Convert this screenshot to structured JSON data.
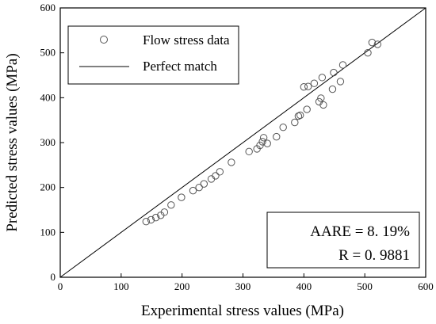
{
  "chart_data": {
    "type": "scatter",
    "title": "",
    "xlabel": "Experimental stress values (MPa)",
    "ylabel": "Predicted stress values (MPa)",
    "xlim": [
      0,
      600
    ],
    "ylim": [
      0,
      600
    ],
    "xticks": [
      "0",
      "100",
      "200",
      "300",
      "400",
      "500",
      "600"
    ],
    "yticks": [
      "0",
      "100",
      "200",
      "300",
      "400",
      "500",
      "600"
    ],
    "grid": false,
    "legend_position": "top-left",
    "series": [
      {
        "name": "Flow stress data",
        "marker": "open-circle",
        "points": [
          [
            141,
            124
          ],
          [
            149,
            128
          ],
          [
            157,
            133
          ],
          [
            165,
            138
          ],
          [
            171,
            145
          ],
          [
            182,
            161
          ],
          [
            199,
            178
          ],
          [
            218,
            193
          ],
          [
            228,
            200
          ],
          [
            236,
            208
          ],
          [
            248,
            219
          ],
          [
            255,
            226
          ],
          [
            262,
            235
          ],
          [
            281,
            256
          ],
          [
            310,
            280
          ],
          [
            323,
            286
          ],
          [
            328,
            294
          ],
          [
            332,
            302
          ],
          [
            334,
            311
          ],
          [
            340,
            298
          ],
          [
            355,
            313
          ],
          [
            366,
            334
          ],
          [
            385,
            345
          ],
          [
            391,
            359
          ],
          [
            394,
            361
          ],
          [
            400,
            424
          ],
          [
            405,
            374
          ],
          [
            407,
            425
          ],
          [
            417,
            432
          ],
          [
            425,
            391
          ],
          [
            428,
            399
          ],
          [
            430,
            445
          ],
          [
            432,
            384
          ],
          [
            447,
            419
          ],
          [
            449,
            456
          ],
          [
            460,
            436
          ],
          [
            464,
            473
          ],
          [
            505,
            500
          ],
          [
            512,
            523
          ],
          [
            521,
            519
          ]
        ]
      },
      {
        "name": "Perfect match",
        "type": "line",
        "points": [
          [
            0,
            0
          ],
          [
            600,
            600
          ]
        ]
      }
    ],
    "annotations": [
      "AARE = 8. 19%",
      "R = 0. 9881"
    ]
  }
}
